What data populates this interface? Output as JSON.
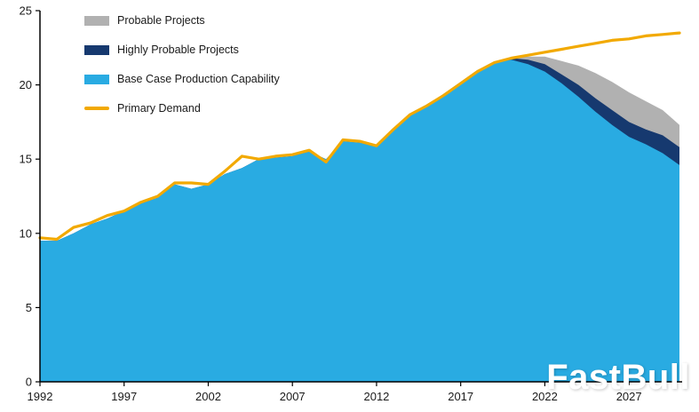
{
  "watermark": "FastBull",
  "legend": {
    "items": [
      {
        "label": "Probable Projects",
        "color": "#b1b1b1"
      },
      {
        "label": "Highly Probable Projects",
        "color": "#16396f"
      },
      {
        "label": "Base Case Production Capability",
        "color": "#29abe2"
      },
      {
        "label": "Primary Demand",
        "color": "#f2a900"
      }
    ]
  },
  "chart_data": {
    "type": "area",
    "title": "",
    "xlabel": "",
    "ylabel": "",
    "grid": false,
    "legend_position": "top-left",
    "ylim": [
      0,
      25
    ],
    "y_ticks": [
      0,
      5,
      10,
      15,
      20,
      25
    ],
    "x_ticks": [
      1992,
      1997,
      2002,
      2007,
      2012,
      2017,
      2022,
      2027
    ],
    "x": [
      1992,
      1993,
      1994,
      1995,
      1996,
      1997,
      1998,
      1999,
      2000,
      2001,
      2002,
      2003,
      2004,
      2005,
      2006,
      2007,
      2008,
      2009,
      2010,
      2011,
      2012,
      2013,
      2014,
      2015,
      2016,
      2017,
      2018,
      2019,
      2020,
      2021,
      2022,
      2023,
      2024,
      2025,
      2026,
      2027,
      2028,
      2029,
      2030
    ],
    "series": [
      {
        "name": "Base Case Production Capability",
        "render": "area",
        "color": "#29abe2",
        "values": [
          9.5,
          9.5,
          10.0,
          10.6,
          11.0,
          11.5,
          12.0,
          12.4,
          13.3,
          13.0,
          13.3,
          14.0,
          14.4,
          15.0,
          15.1,
          15.2,
          15.5,
          15.0,
          16.2,
          16.1,
          15.9,
          17.0,
          17.9,
          18.6,
          19.4,
          20.2,
          21.0,
          21.5,
          21.7,
          21.4,
          20.9,
          20.1,
          19.2,
          18.2,
          17.3,
          16.5,
          16.0,
          15.4,
          14.6
        ]
      },
      {
        "name": "Highly Probable Projects",
        "render": "area",
        "color": "#16396f",
        "values": [
          0,
          0,
          0,
          0,
          0,
          0,
          0,
          0,
          0,
          0,
          0,
          0,
          0,
          0,
          0,
          0,
          0,
          0,
          0,
          0,
          0,
          0,
          0,
          0,
          0,
          0,
          0,
          0,
          0.1,
          0.3,
          0.5,
          0.6,
          0.8,
          0.9,
          1.0,
          1.0,
          1.0,
          1.2,
          1.2
        ]
      },
      {
        "name": "Probable Projects",
        "render": "area",
        "color": "#b1b1b1",
        "values": [
          0,
          0,
          0,
          0,
          0,
          0,
          0,
          0,
          0,
          0,
          0,
          0,
          0,
          0,
          0,
          0,
          0,
          0,
          0,
          0,
          0,
          0,
          0,
          0,
          0,
          0,
          0,
          0,
          0,
          0.2,
          0.5,
          0.9,
          1.3,
          1.7,
          1.9,
          2.0,
          1.9,
          1.7,
          1.5
        ]
      },
      {
        "name": "Primary Demand",
        "render": "line",
        "color": "#f2a900",
        "values": [
          9.7,
          9.6,
          10.4,
          10.7,
          11.2,
          11.5,
          12.1,
          12.5,
          13.4,
          13.4,
          13.3,
          14.2,
          15.2,
          15.0,
          15.2,
          15.3,
          15.6,
          14.8,
          16.3,
          16.2,
          15.9,
          17.0,
          18.0,
          18.6,
          19.3,
          20.1,
          20.9,
          21.5,
          21.8,
          22.0,
          22.2,
          22.4,
          22.6,
          22.8,
          23.0,
          23.1,
          23.3,
          23.4,
          23.5
        ]
      }
    ]
  }
}
